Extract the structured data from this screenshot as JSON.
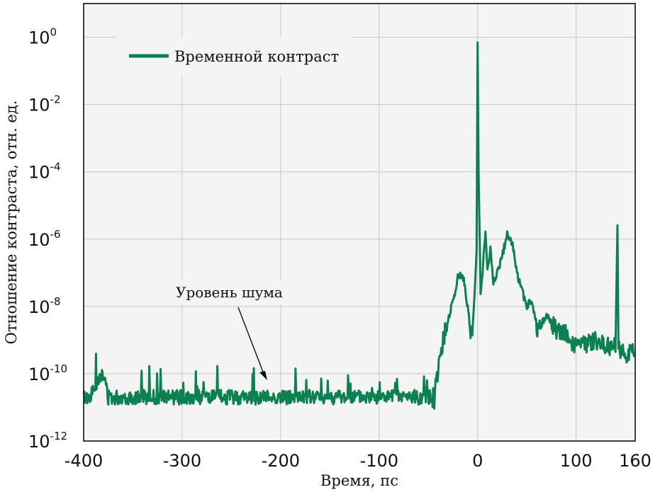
{
  "chart_data": {
    "type": "line",
    "xlabel": "Время, пс",
    "ylabel": "Отношение контраста, отн. ед.",
    "xlim": [
      -400,
      160
    ],
    "xticks": [
      -400,
      -300,
      -200,
      -100,
      0,
      100,
      160
    ],
    "y_scale": "log",
    "ylim_exponents": [
      -12,
      1
    ],
    "yticks": [
      {
        "base": "10",
        "exp": "0"
      },
      {
        "base": "10",
        "exp": "-2"
      },
      {
        "base": "10",
        "exp": "-4"
      },
      {
        "base": "10",
        "exp": "-6"
      },
      {
        "base": "10",
        "exp": "-8"
      },
      {
        "base": "10",
        "exp": "-10"
      },
      {
        "base": "10",
        "exp": "-12"
      }
    ],
    "ytick_exponents": [
      0,
      -2,
      -4,
      -6,
      -8,
      -10,
      -12
    ],
    "grid": true,
    "legend_position": "top-left",
    "series": [
      {
        "name": "Временной контраст",
        "color": "#0b8050",
        "x": [
          -400,
          -395,
          -390,
          -385,
          -382,
          -378,
          -375,
          -370,
          -360,
          -340,
          -320,
          -300,
          -280,
          -260,
          -240,
          -220,
          -200,
          -180,
          -160,
          -140,
          -120,
          -100,
          -80,
          -70,
          -60,
          -52,
          -48,
          -44,
          -42,
          -40,
          -35,
          -30,
          -25,
          -20,
          -17,
          -14,
          -10,
          -6,
          -3,
          -1,
          0,
          1,
          3,
          5,
          8,
          10,
          13,
          16,
          20,
          25,
          30,
          35,
          40,
          45,
          50,
          55,
          60,
          70,
          80,
          90,
          100,
          110,
          120,
          130,
          140,
          142,
          143,
          145,
          150,
          155,
          160
        ],
        "y": [
          2e-11,
          2e-11,
          3e-11,
          8e-11,
          9e-11,
          6e-11,
          2e-11,
          2e-11,
          2e-11,
          2e-11,
          2e-11,
          2e-11,
          2e-11,
          2e-11,
          2e-11,
          2e-11,
          2e-11,
          2e-11,
          2e-11,
          2e-11,
          2e-11,
          2e-11,
          2e-11,
          2e-11,
          2e-11,
          2e-11,
          2e-11,
          1.5e-11,
          6e-11,
          1.5e-10,
          1e-09,
          4e-09,
          1.5e-08,
          7e-08,
          9e-08,
          6e-08,
          1e-08,
          1e-09,
          2e-08,
          5e-07,
          0.7,
          0.0001,
          3e-08,
          1e-07,
          2e-06,
          1e-07,
          5e-07,
          5e-08,
          1e-07,
          3e-07,
          1.5e-06,
          8e-07,
          1e-07,
          3e-08,
          1e-08,
          1.5e-08,
          2e-09,
          5e-09,
          2e-09,
          1.5e-09,
          6e-10,
          8e-10,
          1e-09,
          7e-10,
          6e-10,
          3e-06,
          1e-09,
          5e-10,
          3e-10,
          5e-10,
          4e-10
        ]
      }
    ],
    "annotation": {
      "text": "Уровень шума",
      "x": -215,
      "y": 1e-10
    }
  }
}
